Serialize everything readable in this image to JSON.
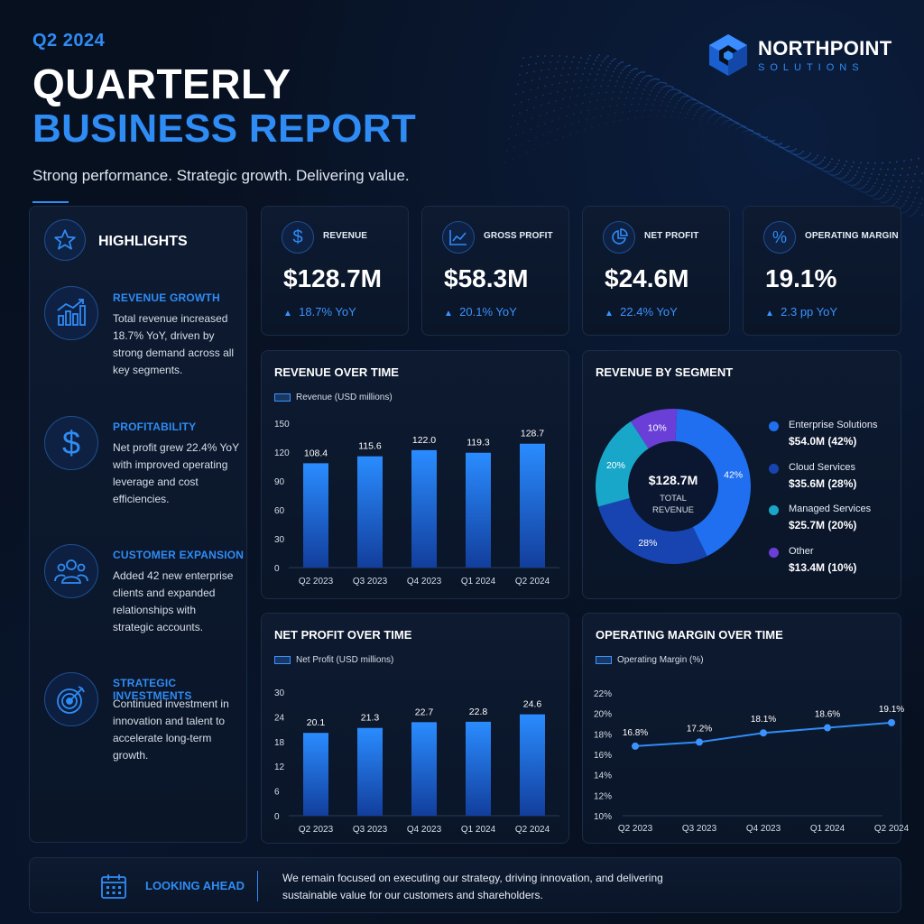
{
  "header": {
    "quarter": "Q2 2024",
    "title_line1": "QUARTERLY",
    "title_line2": "BUSINESS REPORT",
    "tagline": "Strong performance. Strategic growth. Delivering value."
  },
  "logo": {
    "name": "NORTHPOINT",
    "sub": "SOLUTIONS"
  },
  "highlights": {
    "title": "HIGHLIGHTS",
    "items": [
      {
        "title": "REVENUE GROWTH",
        "text": "Total revenue increased 18.7% YoY, driven by strong demand across all key segments.",
        "icon": "bar-growth-icon"
      },
      {
        "title": "PROFITABILITY",
        "text": "Net profit grew 22.4% YoY with improved operating leverage and cost efficiencies.",
        "icon": "dollar-icon"
      },
      {
        "title": "CUSTOMER EXPANSION",
        "text": "Added 42 new enterprise clients and expanded relationships with strategic accounts.",
        "icon": "people-icon"
      },
      {
        "title": "STRATEGIC INVESTMENTS",
        "text": "Continued investment in innovation and talent to accelerate long-term growth.",
        "icon": "target-icon"
      }
    ]
  },
  "kpis": [
    {
      "label": "REVENUE",
      "value": "$128.7M",
      "delta": "18.7% YoY",
      "icon": "dollar-circle-icon"
    },
    {
      "label": "GROSS PROFIT",
      "value": "$58.3M",
      "delta": "20.1% YoY",
      "icon": "line-chart-icon"
    },
    {
      "label": "NET PROFIT",
      "value": "$24.6M",
      "delta": "22.4% YoY",
      "icon": "pie-icon"
    },
    {
      "label": "OPERATING MARGIN",
      "value": "19.1%",
      "delta": "2.3 pp YoY",
      "icon": "percent-icon"
    }
  ],
  "colors": {
    "accent": "#2f8cf5",
    "background": "#07101f",
    "panel": "#0d1a30",
    "segment_enterprise": "#1f6ff0",
    "segment_cloud": "#1744b0",
    "segment_managed": "#19a7c9",
    "segment_other": "#6a3fd8"
  },
  "chart_data": [
    {
      "id": "revenue",
      "type": "bar",
      "title": "REVENUE OVER TIME",
      "legend": "Revenue (USD millions)",
      "categories": [
        "Q2 2023",
        "Q3 2023",
        "Q4 2023",
        "Q1 2024",
        "Q2 2024"
      ],
      "values": [
        108.4,
        115.6,
        122.0,
        119.3,
        128.7
      ],
      "labels": [
        "108.4",
        "115.6",
        "122.0",
        "119.3",
        "128.7"
      ],
      "ylim": [
        0,
        150
      ],
      "yticks": [
        "0",
        "30",
        "60",
        "90",
        "120",
        "150"
      ]
    },
    {
      "id": "segments",
      "type": "pie",
      "title": "REVENUE BY SEGMENT",
      "center_value": "$128.7M",
      "center_label_1": "TOTAL",
      "center_label_2": "REVENUE",
      "slices": [
        {
          "name": "Enterprise Solutions",
          "value": 42,
          "label": "42%",
          "amount": "$54.0M (42%)"
        },
        {
          "name": "Cloud Services",
          "value": 28,
          "label": "28%",
          "amount": "$35.6M (28%)"
        },
        {
          "name": "Managed Services",
          "value": 20,
          "label": "20%",
          "amount": "$25.7M (20%)"
        },
        {
          "name": "Other",
          "value": 10,
          "label": "10%",
          "amount": "$13.4M (10%)"
        }
      ]
    },
    {
      "id": "netprofit",
      "type": "bar",
      "title": "NET PROFIT OVER TIME",
      "legend": "Net Profit (USD millions)",
      "categories": [
        "Q2 2023",
        "Q3 2023",
        "Q4 2023",
        "Q1 2024",
        "Q2 2024"
      ],
      "values": [
        20.1,
        21.3,
        22.7,
        22.8,
        24.6
      ],
      "labels": [
        "20.1",
        "21.3",
        "22.7",
        "22.8",
        "24.6"
      ],
      "ylim": [
        0,
        30
      ],
      "yticks": [
        "0",
        "6",
        "12",
        "18",
        "24",
        "30"
      ]
    },
    {
      "id": "margin",
      "type": "line",
      "title": "OPERATING MARGIN OVER TIME",
      "legend": "Operating Margin (%)",
      "categories": [
        "Q2 2023",
        "Q3 2023",
        "Q4 2023",
        "Q1 2024",
        "Q2 2024"
      ],
      "values": [
        16.8,
        17.2,
        18.1,
        18.6,
        19.1
      ],
      "labels": [
        "16.8%",
        "17.2%",
        "18.1%",
        "18.6%",
        "19.1%"
      ],
      "ylim": [
        10,
        22
      ],
      "yticks": [
        "10%",
        "12%",
        "14%",
        "16%",
        "18%",
        "20%",
        "22%"
      ]
    }
  ],
  "footer": {
    "label": "LOOKING AHEAD",
    "text": "We remain focused on executing our strategy, driving innovation, and delivering sustainable value for our customers and shareholders."
  }
}
